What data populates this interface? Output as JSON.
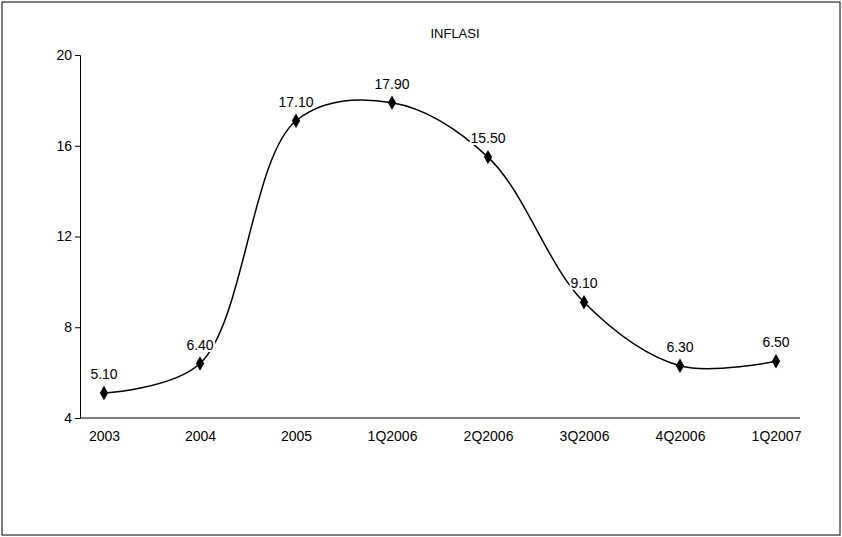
{
  "chart_data": {
    "type": "line",
    "title": "INFLASI",
    "categories": [
      "2003",
      "2004",
      "2005",
      "1Q2006",
      "2Q2006",
      "3Q2006",
      "4Q2006",
      "1Q2007"
    ],
    "values": [
      5.1,
      6.4,
      17.1,
      17.9,
      15.5,
      9.1,
      6.3,
      6.5
    ],
    "value_labels": [
      "5.10",
      "6.40",
      "17.10",
      "17.90",
      "15.50",
      "9.10",
      "6.30",
      "6.50"
    ],
    "color": "#000000",
    "marker": "diamond",
    "line_style": "solid",
    "ylim": [
      4,
      20
    ],
    "yticks": [
      4,
      8,
      12,
      16,
      20
    ],
    "grid": false,
    "data_labels": true
  }
}
